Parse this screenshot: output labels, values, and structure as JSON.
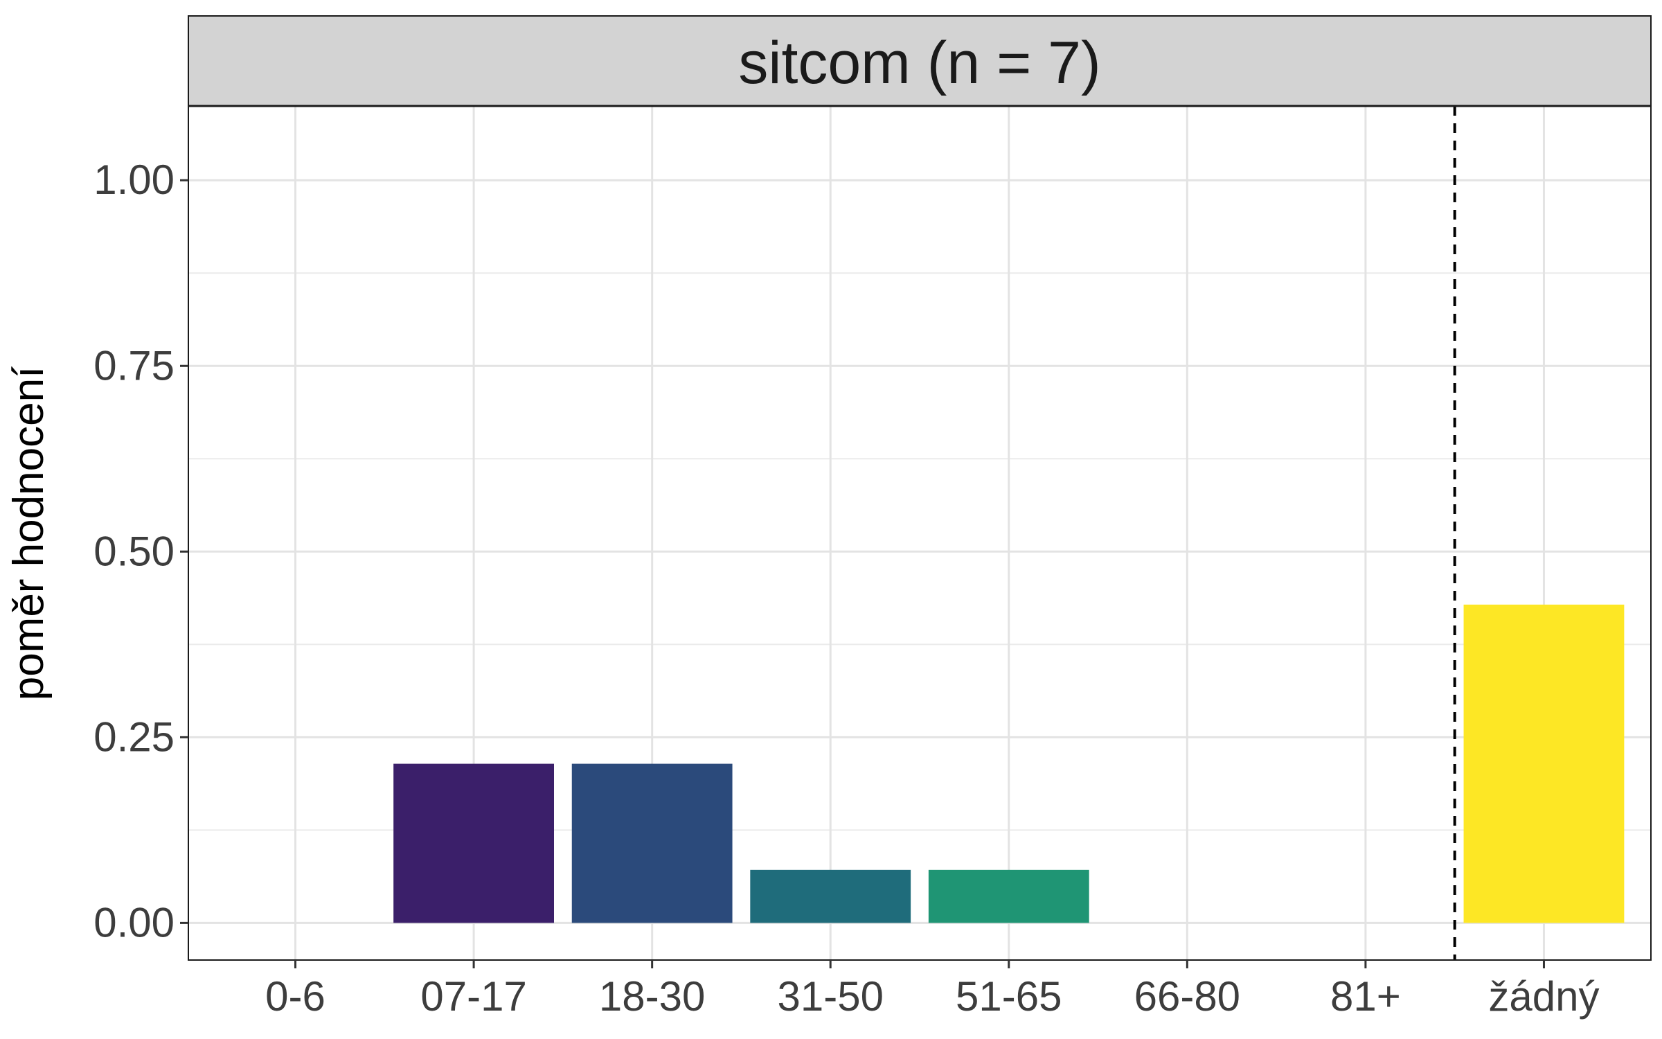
{
  "chart_data": {
    "type": "bar",
    "facet_title": "sitcom (n = 7)",
    "ylabel": "poměr hodnocení",
    "xlabel": "",
    "categories": [
      "0-6",
      "07-17",
      "18-30",
      "31-50",
      "51-65",
      "66-80",
      "81+",
      "žádný"
    ],
    "values": [
      0,
      0.2143,
      0.2143,
      0.0714,
      0.0714,
      0,
      0,
      0.4286
    ],
    "colors": [
      "#440154",
      "#3B1F6A",
      "#2B4A7B",
      "#1F6C7B",
      "#1F9574",
      "#49B65E",
      "#9ED43F",
      "#FDE725"
    ],
    "ylim": [
      -0.05,
      1.1
    ],
    "y_ticks": [
      0,
      0.25,
      0.5,
      0.75,
      1.0
    ],
    "y_tick_labels": [
      "0.00",
      "0.25",
      "0.50",
      "0.75",
      "1.00"
    ],
    "reference_line": {
      "style": "dashed",
      "between": [
        "81+",
        "žádný"
      ]
    },
    "grid": true,
    "legend": "none"
  }
}
